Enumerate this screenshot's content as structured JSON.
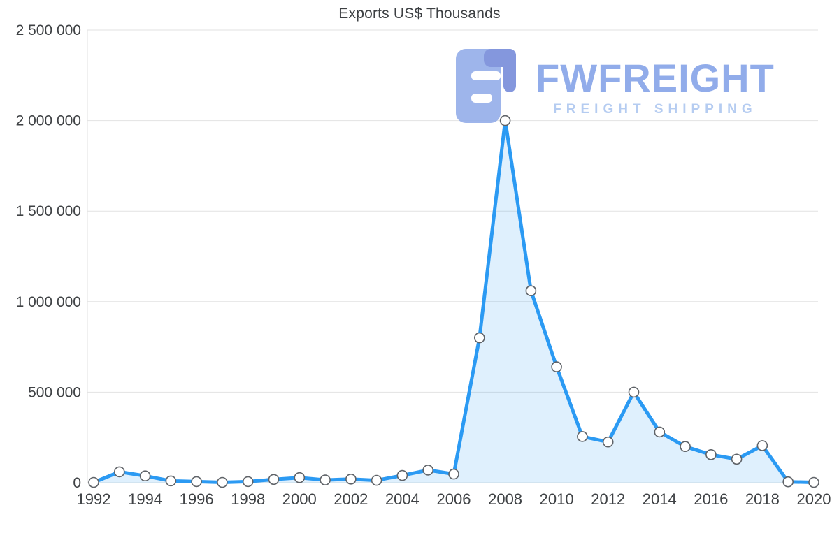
{
  "watermark": {
    "brand": "FWFREIGHT",
    "tagline": "FREIGHT SHIPPING",
    "brand_color": "#7e9ee7",
    "tagline_color": "#a9c4ef",
    "logo_color_light": "#8ea9e8",
    "logo_color_dark": "#6f86d8"
  },
  "chart_data": {
    "type": "area",
    "title": "Exports US$ Thousands",
    "x": [
      1992,
      1993,
      1994,
      1995,
      1996,
      1997,
      1998,
      1999,
      2000,
      2001,
      2002,
      2003,
      2004,
      2005,
      2006,
      2007,
      2008,
      2009,
      2010,
      2011,
      2012,
      2013,
      2014,
      2015,
      2016,
      2017,
      2018,
      2019,
      2020
    ],
    "values": [
      2000,
      60000,
      38000,
      10000,
      6000,
      2000,
      6000,
      18000,
      28000,
      15000,
      20000,
      13000,
      40000,
      70000,
      48000,
      800000,
      2000000,
      1060000,
      640000,
      255000,
      225000,
      500000,
      280000,
      200000,
      155000,
      130000,
      205000,
      5000,
      2000
    ],
    "xlabel": "",
    "ylabel": "",
    "ylim": [
      0,
      2500000
    ],
    "ytick_step": 500000,
    "ytick_labels": [
      "0",
      "500 000",
      "1 000 000",
      "1 500 000",
      "2 000 000",
      "2 500 000"
    ],
    "xtick_label_step": 2,
    "grid": true,
    "legend": "none",
    "colors": {
      "line": "#2b9af3",
      "area": "rgba(43,154,243,0.15)",
      "marker_fill": "#ffffff",
      "marker_stroke": "#5f6368",
      "grid": "#e2e2e2",
      "axis_text": "#3f4245",
      "title_text": "#3d4043"
    }
  }
}
